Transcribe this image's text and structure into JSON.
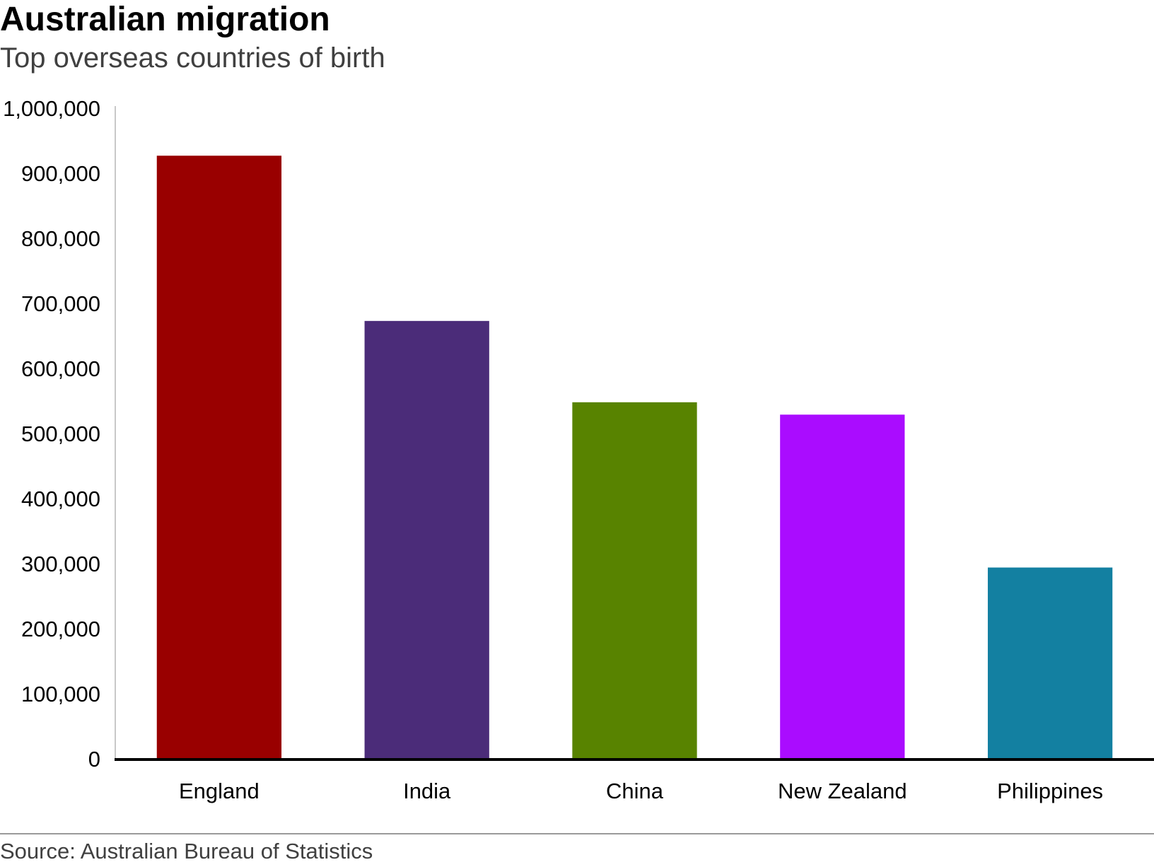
{
  "title": "Australian migration",
  "subtitle": "Top overseas countries of birth",
  "source": "Source: Australian Bureau of Statistics",
  "chart_data": {
    "type": "bar",
    "title": "Australian migration",
    "subtitle": "Top overseas countries of birth",
    "xlabel": "",
    "ylabel": "",
    "categories": [
      "England",
      "India",
      "China",
      "New Zealand",
      "Philippines"
    ],
    "values": [
      927000,
      673000,
      548000,
      529000,
      294000
    ],
    "colors": [
      "#990000",
      "#4b2c79",
      "#588300",
      "#aa0cff",
      "#1380a1"
    ],
    "ylim": [
      0,
      1000000
    ],
    "yticks": [
      0,
      100000,
      200000,
      300000,
      400000,
      500000,
      600000,
      700000,
      800000,
      900000,
      1000000
    ],
    "ytick_labels": [
      "0",
      "100,000",
      "200,000",
      "300,000",
      "400,000",
      "500,000",
      "600,000",
      "700,000",
      "800,000",
      "900,000",
      "1,000,000"
    ],
    "grid": false,
    "legend": "none"
  }
}
